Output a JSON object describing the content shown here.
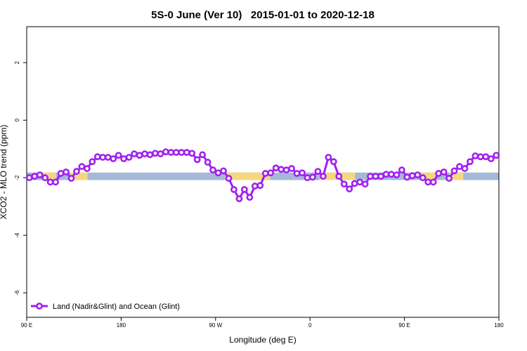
{
  "chart_data": {
    "type": "line",
    "title": "5S-0 June (Ver 10)   2015-01-01 to 2020-12-18",
    "x_label": "Longitude (deg E)",
    "y_label": "XCO2 - MLO trend (ppm)",
    "xlim": [
      90,
      540
    ],
    "xticks": [
      {
        "value": 90,
        "label": "90 E"
      },
      180,
      {
        "value": 270,
        "label": "90 W"
      },
      {
        "value": 360,
        "label": "0"
      },
      {
        "value": 450,
        "label": "90 E"
      },
      {
        "value": 540,
        "label": "180"
      }
    ],
    "ylim": [
      -6.85,
      3.25
    ],
    "yticks": [
      -6,
      -4,
      -2,
      0,
      2
    ],
    "grid": false,
    "legend": "bottom-left",
    "band": {
      "range": [
        -2.08,
        -1.82
      ],
      "ocean_color": "#a3b9d7",
      "land_color": "#f7d77e",
      "land": [
        [
          104.7,
          118
        ],
        [
          131.5,
          148
        ],
        [
          279,
          322
        ],
        [
          369,
          403
        ],
        [
          466,
          480
        ],
        [
          493,
          506
        ]
      ]
    },
    "x": [
      92.5,
      97.5,
      102.5,
      107.5,
      112.5,
      117.5,
      122.5,
      127.5,
      132.5,
      137.5,
      142.5,
      147.5,
      152.5,
      157.5,
      162.5,
      167.5,
      172.5,
      177.5,
      182.5,
      187.5,
      192.5,
      197.5,
      202.5,
      207.5,
      212.5,
      217.5,
      222.5,
      227.5,
      232.5,
      237.5,
      242.5,
      247.5,
      252.5,
      257.5,
      262.5,
      267.5,
      272.5,
      277.5,
      282.5,
      287.5,
      292.5,
      297.5,
      302.5,
      307.5,
      312.5,
      317.5,
      322.5,
      327.5,
      332.5,
      337.5,
      342.5,
      347.5,
      352.5,
      357.5,
      362.5,
      367.5,
      372.5,
      377.5,
      382.5,
      387.5,
      392.5,
      397.5,
      402.5,
      407.5,
      412.5,
      417.5,
      422.5,
      427.5,
      432.5,
      437.5,
      442.5,
      447.5,
      452.5,
      457.5,
      462.5,
      467.5,
      472.5,
      477.5,
      482.5,
      487.5,
      492.5,
      497.5,
      502.5,
      507.5,
      512.5,
      517.5,
      522.5,
      527.5,
      532.5,
      537.5
    ],
    "series": [
      {
        "name": "Land (Nadir&Glint) and Ocean (Glint)",
        "color": "#a020f0",
        "values": [
          -2.0,
          -1.95,
          -1.9,
          -2.0,
          -2.15,
          -2.15,
          -1.85,
          -1.8,
          -2.02,
          -1.78,
          -1.61,
          -1.68,
          -1.44,
          -1.27,
          -1.29,
          -1.29,
          -1.34,
          -1.22,
          -1.34,
          -1.29,
          -1.17,
          -1.22,
          -1.17,
          -1.2,
          -1.15,
          -1.17,
          -1.1,
          -1.12,
          -1.12,
          -1.12,
          -1.12,
          -1.15,
          -1.37,
          -1.2,
          -1.46,
          -1.73,
          -1.83,
          -1.76,
          -2.02,
          -2.41,
          -2.73,
          -2.41,
          -2.68,
          -2.29,
          -2.27,
          -1.85,
          -1.83,
          -1.66,
          -1.71,
          -1.73,
          -1.68,
          -1.85,
          -1.83,
          -2.0,
          -1.98,
          -1.78,
          -1.95,
          -1.29,
          -1.44,
          -1.95,
          -2.22,
          -2.39,
          -2.2,
          -2.15,
          -2.22,
          -1.95,
          -1.95,
          -1.95,
          -1.88,
          -1.88,
          -1.9,
          -1.73,
          -1.98,
          -1.93,
          -1.9,
          -2.0,
          -2.15,
          -2.15,
          -1.85,
          -1.8,
          -2.02,
          -1.76,
          -1.61,
          -1.68,
          -1.44,
          -1.24,
          -1.27,
          -1.27,
          -1.34,
          -1.22
        ]
      }
    ]
  }
}
